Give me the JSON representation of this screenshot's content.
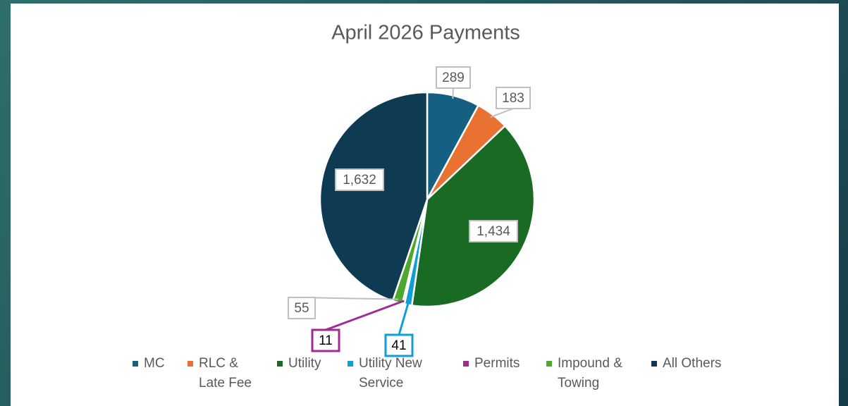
{
  "chart_data": {
    "type": "pie",
    "title": "April 2026 Payments",
    "categories": [
      "MC",
      "RLC & Late Fee",
      "Utility",
      "Utility New Service",
      "Permits",
      "Impound & Towing",
      "All Others"
    ],
    "values": [
      289,
      183,
      1434,
      41,
      11,
      55,
      1632
    ],
    "value_labels": [
      "289",
      "183",
      "1,434",
      "41",
      "11",
      "55",
      "1,632"
    ],
    "colors": [
      "#156082",
      "#e97132",
      "#196b24",
      "#0f9ed5",
      "#a02b93",
      "#4ea72e",
      "#0e3a52"
    ],
    "legend": "bottom"
  }
}
